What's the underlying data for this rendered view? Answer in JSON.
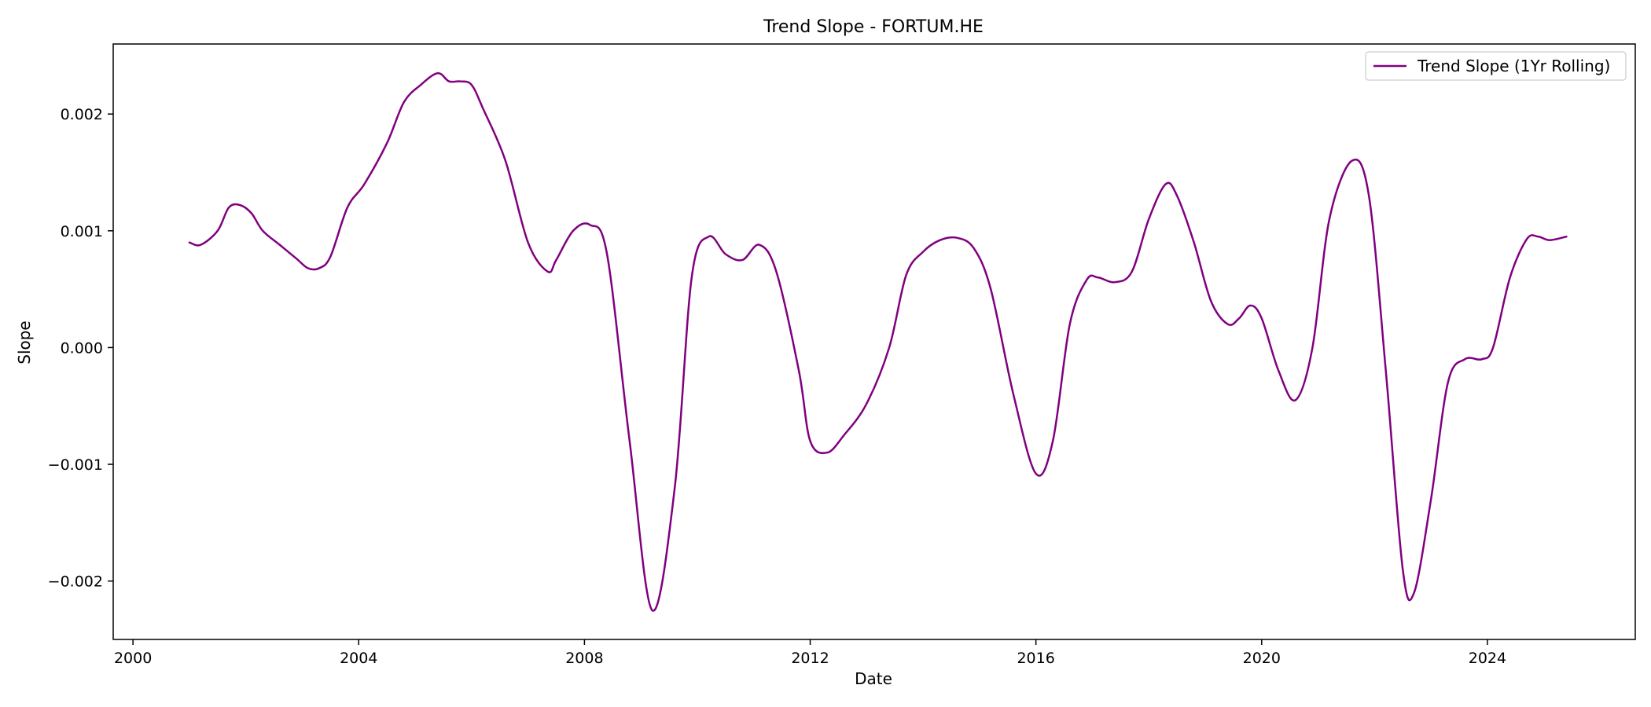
{
  "chart_data": {
    "type": "line",
    "title": "Trend Slope - FORTUM.HE",
    "xlabel": "Date",
    "ylabel": "Slope",
    "xlim": [
      1999.65,
      2026.62
    ],
    "ylim": [
      -0.0025,
      0.0026
    ],
    "xticks": [
      2000,
      2004,
      2008,
      2012,
      2016,
      2020,
      2024
    ],
    "xtick_labels": [
      "2000",
      "2004",
      "2008",
      "2012",
      "2016",
      "2020",
      "2024"
    ],
    "yticks": [
      -0.002,
      -0.001,
      0.0,
      0.001,
      0.002
    ],
    "ytick_labels": [
      "−0.002",
      "−0.001",
      "0.000",
      "0.001",
      "0.002"
    ],
    "grid": false,
    "legend": "top-right",
    "series": [
      {
        "name": "Trend Slope (1Yr Rolling)",
        "color": "#800080",
        "x": [
          2001.0,
          2001.2,
          2001.5,
          2001.7,
          2001.9,
          2002.1,
          2002.3,
          2002.6,
          2002.9,
          2003.1,
          2003.3,
          2003.5,
          2003.8,
          2004.1,
          2004.5,
          2004.8,
          2005.1,
          2005.4,
          2005.6,
          2005.8,
          2006.0,
          2006.2,
          2006.6,
          2007.0,
          2007.35,
          2007.5,
          2007.8,
          2008.1,
          2008.4,
          2008.8,
          2009.2,
          2009.6,
          2009.9,
          2010.2,
          2010.5,
          2010.8,
          2011.1,
          2011.4,
          2011.8,
          2012.0,
          2012.3,
          2012.6,
          2013.0,
          2013.4,
          2013.7,
          2014.0,
          2014.3,
          2014.6,
          2014.9,
          2015.2,
          2015.6,
          2016.0,
          2016.3,
          2016.6,
          2016.9,
          2017.1,
          2017.4,
          2017.7,
          2018.0,
          2018.3,
          2018.5,
          2018.8,
          2019.1,
          2019.4,
          2019.6,
          2019.8,
          2020.0,
          2020.3,
          2020.6,
          2020.9,
          2021.2,
          2021.6,
          2021.9,
          2022.2,
          2022.5,
          2022.7,
          2023.0,
          2023.3,
          2023.6,
          2023.9,
          2024.1,
          2024.4,
          2024.7,
          2024.9,
          2025.1,
          2025.4
        ],
        "values": [
          0.0009,
          0.00088,
          0.001,
          0.0012,
          0.00122,
          0.00115,
          0.001,
          0.00088,
          0.00076,
          0.00068,
          0.00068,
          0.00078,
          0.0012,
          0.0014,
          0.00175,
          0.0021,
          0.00225,
          0.00235,
          0.00228,
          0.00228,
          0.00225,
          0.00205,
          0.0016,
          0.0009,
          0.00065,
          0.00075,
          0.001,
          0.00105,
          0.0008,
          -0.0008,
          -0.00225,
          -0.0012,
          0.0006,
          0.00095,
          0.0008,
          0.00075,
          0.00088,
          0.00065,
          -0.0002,
          -0.0008,
          -0.0009,
          -0.00075,
          -0.00048,
          0.0,
          0.00062,
          0.00082,
          0.00092,
          0.00094,
          0.00085,
          0.0005,
          -0.0004,
          -0.00108,
          -0.0008,
          0.0002,
          0.00058,
          0.0006,
          0.00056,
          0.00065,
          0.0011,
          0.0014,
          0.0013,
          0.0009,
          0.0004,
          0.0002,
          0.00025,
          0.00036,
          0.00025,
          -0.0002,
          -0.00045,
          0.0,
          0.0011,
          0.0016,
          0.0013,
          -0.0002,
          -0.0019,
          -0.0021,
          -0.0013,
          -0.0003,
          -0.0001,
          -0.0001,
          0.0,
          0.0006,
          0.00093,
          0.00095,
          0.00092,
          0.00095
        ]
      }
    ]
  }
}
